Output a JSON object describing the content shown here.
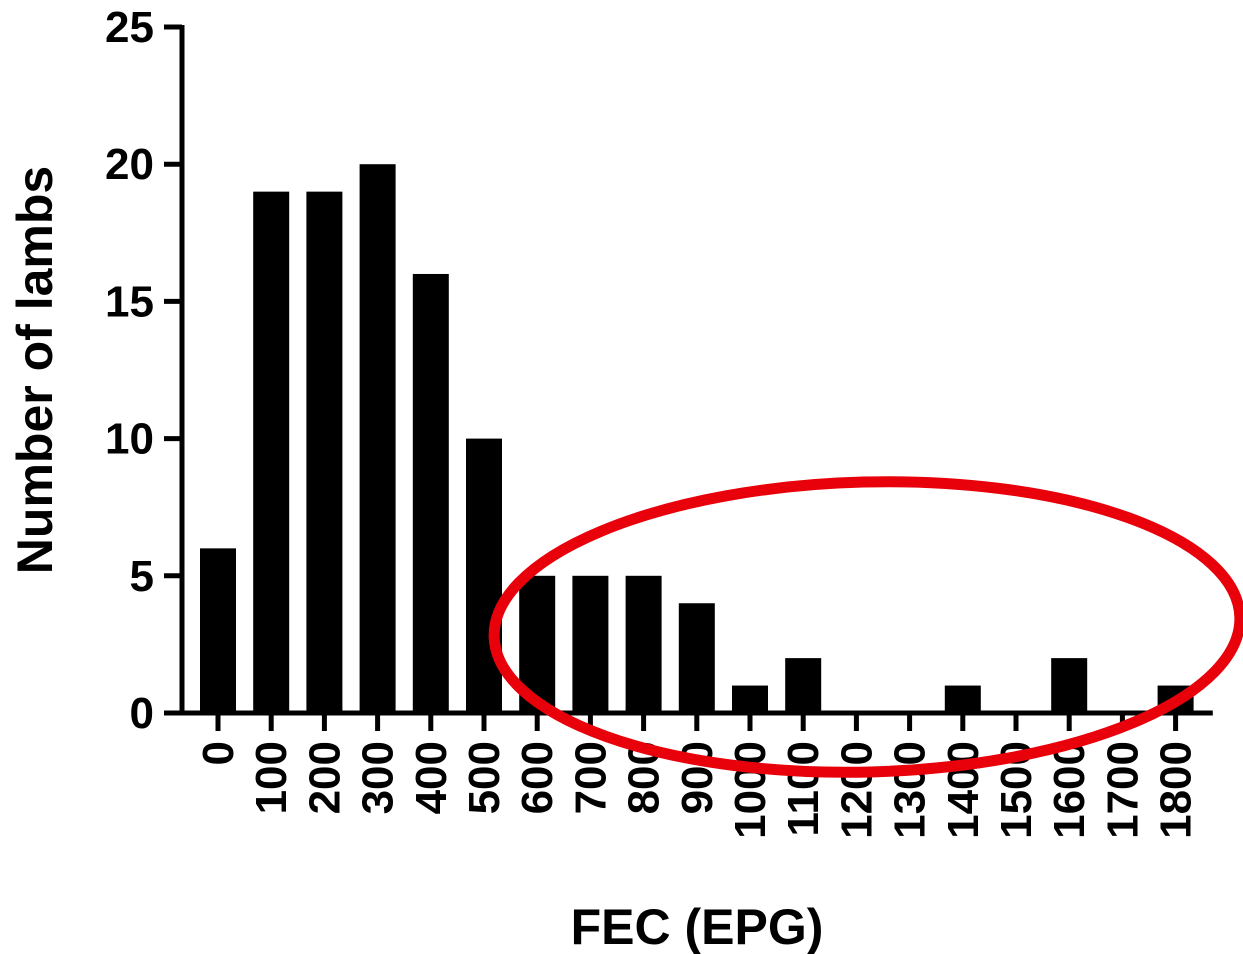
{
  "chart_data": {
    "type": "bar",
    "title": "",
    "xlabel": "FEC (EPG)",
    "ylabel": "Number of lambs",
    "categories": [
      "0",
      "100",
      "200",
      "300",
      "400",
      "500",
      "600",
      "700",
      "800",
      "900",
      "1000",
      "1100",
      "1200",
      "1300",
      "1400",
      "1500",
      "1600",
      "1700",
      "1800"
    ],
    "values": [
      6,
      19,
      19,
      20,
      16,
      10,
      5,
      5,
      5,
      4,
      1,
      2,
      0,
      0,
      1,
      0,
      2,
      0,
      1
    ],
    "ylim": [
      0,
      25
    ],
    "yticks": [
      "0",
      "5",
      "10",
      "15",
      "20",
      "25"
    ],
    "grid": false,
    "bar_color": "#000000",
    "annotation": {
      "shape": "ellipse",
      "color": "#e8000b",
      "encloses_categories": [
        "600",
        "1800"
      ]
    }
  }
}
